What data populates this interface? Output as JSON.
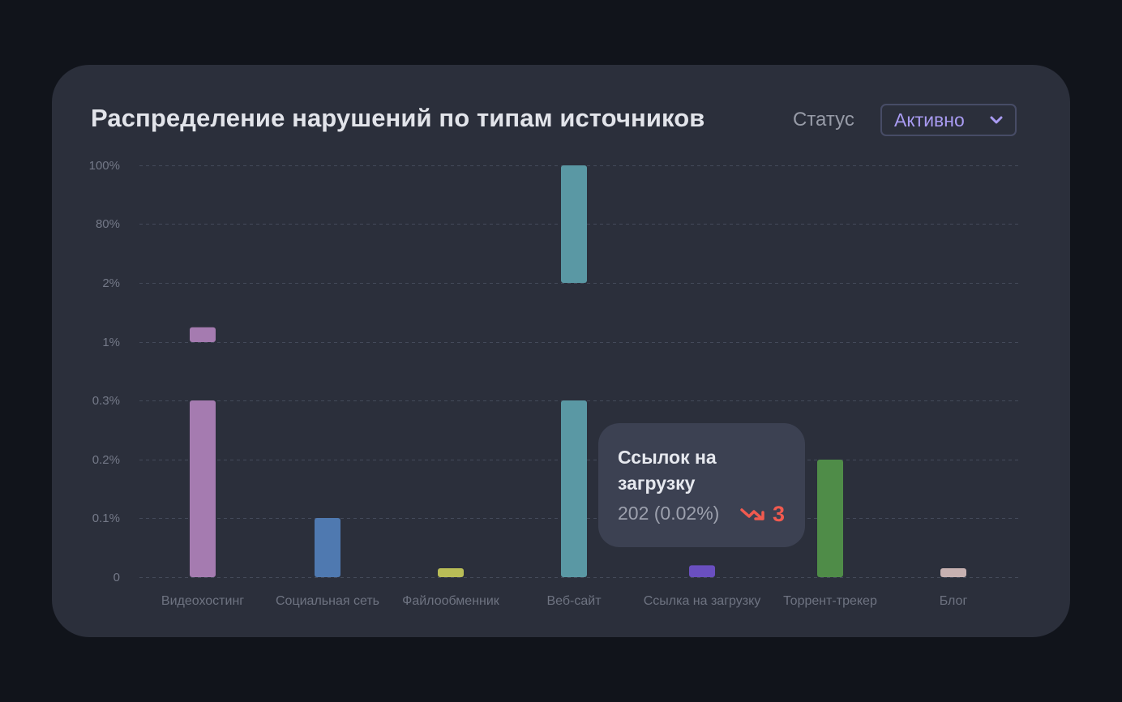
{
  "title": "Распределение нарушений по типам источников",
  "filter": {
    "label": "Статус",
    "selected": "Активно"
  },
  "colors": {
    "background": "#11141b",
    "card": "#2b2f3b",
    "accent": "#a99bf2",
    "trend_down": "#f15a4f"
  },
  "chart_data": {
    "type": "bar",
    "title": "Распределение нарушений по типам источников",
    "xlabel": "",
    "ylabel": "",
    "y_ticks": [
      "0",
      "0.1%",
      "0.2%",
      "0.3%",
      "1%",
      "2%",
      "80%",
      "100%"
    ],
    "axis_break_levels": [
      "0.3%",
      "1%",
      "80%"
    ],
    "grid": true,
    "categories": [
      "Видеохостинг",
      "Социальная сеть",
      "Файлообменник",
      "Веб-сайт",
      "Ссылка на загрузку",
      "Торрент-трекер",
      "Блог"
    ],
    "colors": [
      "#a57bb0",
      "#4f79b0",
      "#b9bd57",
      "#5a98a4",
      "#6a4fc0",
      "#4f8c48",
      "#c7b1b1"
    ],
    "values_pct": [
      1.25,
      0.1,
      0.015,
      100,
      0.02,
      0.2,
      0.015
    ]
  },
  "tooltip": {
    "title": "Ссылок на загрузку",
    "value": "202 (0.02%)",
    "delta": "3",
    "trend": "down"
  }
}
